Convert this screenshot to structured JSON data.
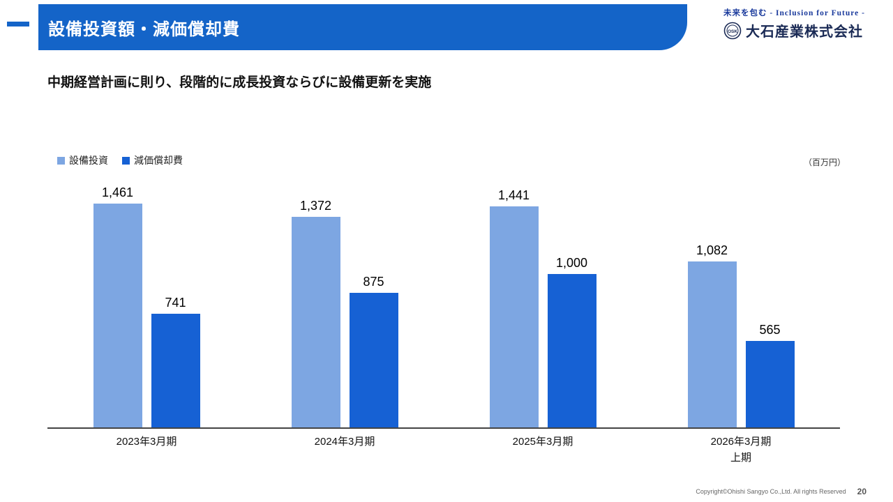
{
  "header": {
    "title": "設備投資額・減価償却費",
    "tagline": "未来を包む - Inclusion for Future -",
    "company": "大石産業株式会社"
  },
  "subtitle": "中期経営計画に則り、段階的に成長投資ならびに設備更新を実施",
  "unit_label": "（百万円）",
  "chart_data": {
    "type": "bar",
    "categories": [
      "2023年3月期",
      "2024年3月期",
      "2025年3月期",
      "2026年3月期\n上期"
    ],
    "series": [
      {
        "name": "設備投資",
        "color": "#7da6e2",
        "values": [
          1461,
          1372,
          1441,
          1082
        ]
      },
      {
        "name": "減価償却費",
        "color": "#1661d4",
        "values": [
          741,
          875,
          1000,
          565
        ]
      }
    ],
    "ylim": [
      0,
      1600
    ],
    "grid": false,
    "legend_position": "top-left",
    "value_labels": true
  },
  "colors": {
    "banner": "#1464c8",
    "series_light": "#7da6e2",
    "series_dark": "#1661d4"
  },
  "footer": {
    "copyright": "Copyright©Ohishi Sangyo Co.,Ltd. All rights Reserved",
    "page_number": "20"
  }
}
